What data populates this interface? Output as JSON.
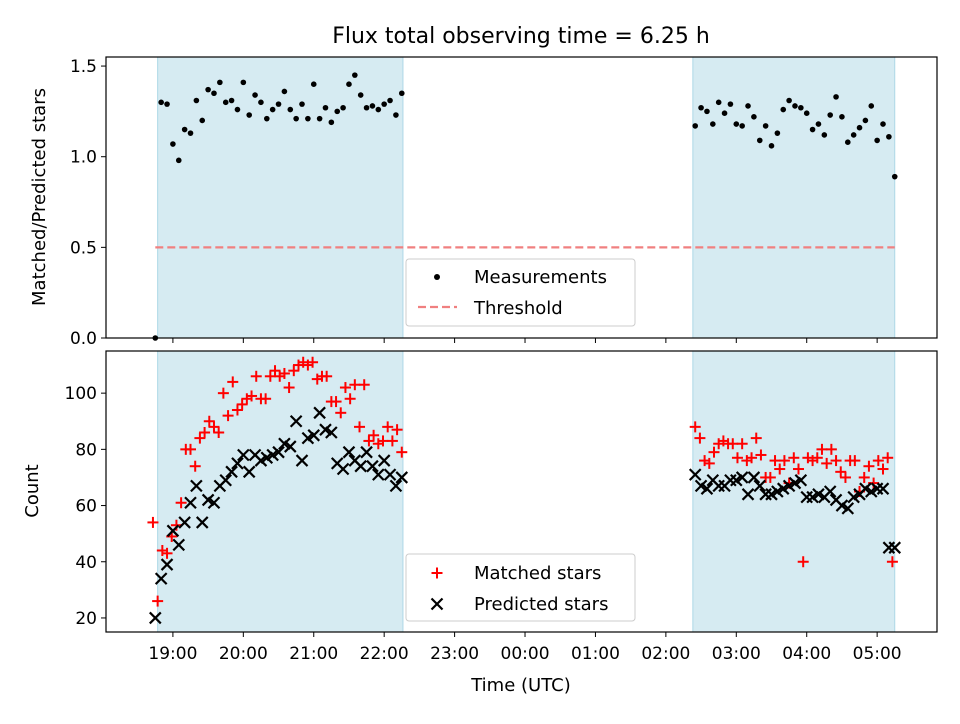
{
  "title": "Flux total observing time = 6.25 h",
  "xlabel": "Time (UTC)",
  "x_ticks": [
    "19:00",
    "20:00",
    "21:00",
    "22:00",
    "23:00",
    "00:00",
    "01:00",
    "02:00",
    "03:00",
    "04:00",
    "05:00"
  ],
  "colors": {
    "observing_window": "#add8e6",
    "threshold": "#f08080",
    "measurement": "#000000",
    "matched": "#ff0000",
    "predicted": "#000000"
  },
  "chart_data": [
    {
      "type": "scatter",
      "panel": "top",
      "ylabel": "Matched/Predicted stars",
      "ylim": [
        0,
        1.55
      ],
      "y_ticks": [
        "0.0",
        "0.5",
        "1.0",
        "1.5"
      ],
      "xlim_hours": [
        18.05,
        29.85
      ],
      "shaded_windows": [
        {
          "start": "18:47",
          "end": "22:16"
        },
        {
          "start": "02:23",
          "end": "05:15"
        }
      ],
      "threshold": 0.5,
      "legend": {
        "position": "lower center",
        "entries": [
          "Measurements",
          "Threshold"
        ]
      },
      "series": [
        {
          "name": "Measurements",
          "marker": "dot",
          "x": [
            "18:45",
            "18:50",
            "18:55",
            "19:00",
            "19:05",
            "19:10",
            "19:15",
            "19:20",
            "19:25",
            "19:30",
            "19:35",
            "19:40",
            "19:45",
            "19:50",
            "19:55",
            "20:00",
            "20:05",
            "20:10",
            "20:15",
            "20:20",
            "20:25",
            "20:30",
            "20:35",
            "20:40",
            "20:45",
            "20:50",
            "20:55",
            "21:00",
            "21:05",
            "21:10",
            "21:15",
            "21:20",
            "21:25",
            "21:30",
            "21:35",
            "21:40",
            "21:45",
            "21:50",
            "21:55",
            "22:00",
            "22:05",
            "22:10",
            "22:15",
            "02:25",
            "02:30",
            "02:35",
            "02:40",
            "02:45",
            "02:50",
            "02:55",
            "03:00",
            "03:05",
            "03:10",
            "03:15",
            "03:20",
            "03:25",
            "03:30",
            "03:35",
            "03:40",
            "03:45",
            "03:50",
            "03:55",
            "04:00",
            "04:05",
            "04:10",
            "04:15",
            "04:20",
            "04:25",
            "04:30",
            "04:35",
            "04:40",
            "04:45",
            "04:50",
            "04:55",
            "05:00",
            "05:05",
            "05:10",
            "05:15"
          ],
          "y": [
            0.0,
            1.3,
            1.29,
            1.07,
            0.98,
            1.15,
            1.13,
            1.31,
            1.2,
            1.37,
            1.35,
            1.41,
            1.3,
            1.31,
            1.26,
            1.41,
            1.23,
            1.34,
            1.3,
            1.21,
            1.26,
            1.29,
            1.36,
            1.26,
            1.21,
            1.29,
            1.21,
            1.4,
            1.21,
            1.27,
            1.19,
            1.25,
            1.27,
            1.4,
            1.45,
            1.34,
            1.27,
            1.28,
            1.26,
            1.29,
            1.31,
            1.23,
            1.35,
            1.17,
            1.27,
            1.25,
            1.18,
            1.3,
            1.24,
            1.29,
            1.18,
            1.17,
            1.28,
            1.22,
            1.09,
            1.17,
            1.06,
            1.13,
            1.26,
            1.31,
            1.28,
            1.27,
            1.24,
            1.15,
            1.18,
            1.12,
            1.23,
            1.33,
            1.22,
            1.08,
            1.12,
            1.16,
            1.2,
            1.28,
            1.09,
            1.18,
            1.11,
            0.89
          ]
        }
      ]
    },
    {
      "type": "scatter",
      "panel": "bottom",
      "ylabel": "Count",
      "ylim": [
        15,
        115
      ],
      "y_ticks": [
        "20",
        "40",
        "60",
        "80",
        "100"
      ],
      "xlim_hours": [
        18.05,
        29.85
      ],
      "shaded_windows": [
        {
          "start": "18:47",
          "end": "22:16"
        },
        {
          "start": "02:23",
          "end": "05:15"
        }
      ],
      "legend": {
        "position": "lower center",
        "entries": [
          "Matched stars",
          "Predicted stars"
        ]
      },
      "series": [
        {
          "name": "Matched stars",
          "marker": "plus",
          "x": [
            "18:43",
            "18:47",
            "18:51",
            "18:55",
            "18:59",
            "19:03",
            "19:07",
            "19:11",
            "19:15",
            "19:19",
            "19:23",
            "19:27",
            "19:31",
            "19:35",
            "19:39",
            "19:43",
            "19:47",
            "19:51",
            "19:55",
            "19:59",
            "20:03",
            "20:07",
            "20:11",
            "20:15",
            "20:19",
            "20:23",
            "20:27",
            "20:31",
            "20:35",
            "20:39",
            "20:43",
            "20:47",
            "20:51",
            "20:55",
            "20:59",
            "21:03",
            "21:07",
            "21:11",
            "21:15",
            "21:19",
            "21:23",
            "21:27",
            "21:31",
            "21:35",
            "21:39",
            "21:43",
            "21:47",
            "21:51",
            "21:55",
            "21:59",
            "22:03",
            "22:07",
            "22:11",
            "22:15",
            "02:25",
            "02:29",
            "02:33",
            "02:37",
            "02:41",
            "02:45",
            "02:49",
            "02:53",
            "02:57",
            "03:01",
            "03:05",
            "03:09",
            "03:13",
            "03:17",
            "03:21",
            "03:25",
            "03:29",
            "03:33",
            "03:37",
            "03:41",
            "03:45",
            "03:49",
            "03:53",
            "03:57",
            "04:01",
            "04:05",
            "04:09",
            "04:13",
            "04:17",
            "04:21",
            "04:25",
            "04:29",
            "04:33",
            "04:37",
            "04:41",
            "04:45",
            "04:49",
            "04:53",
            "04:57",
            "05:01",
            "05:05",
            "05:09",
            "05:13"
          ],
          "y": [
            54,
            26,
            44,
            43,
            49,
            53,
            61,
            80,
            80,
            74,
            84,
            86,
            90,
            88,
            86,
            100,
            92,
            104,
            94,
            96,
            98,
            99,
            106,
            98,
            98,
            106,
            108,
            106,
            107,
            102,
            108,
            110,
            111,
            110,
            111,
            105,
            106,
            106,
            97,
            97,
            93,
            102,
            98,
            103,
            88,
            103,
            83,
            85,
            82,
            83,
            88,
            83,
            87,
            79,
            88,
            84,
            76,
            75,
            79,
            82,
            83,
            82,
            82,
            77,
            82,
            76,
            77,
            84,
            78,
            70,
            70,
            76,
            73,
            76,
            68,
            77,
            73,
            40,
            77,
            76,
            77,
            80,
            75,
            80,
            76,
            72,
            70,
            76,
            76,
            65,
            70,
            74,
            68,
            76,
            73,
            77,
            40
          ]
        },
        {
          "name": "Predicted stars",
          "marker": "x",
          "x": [
            "18:45",
            "18:50",
            "18:55",
            "19:00",
            "19:05",
            "19:10",
            "19:15",
            "19:20",
            "19:25",
            "19:30",
            "19:35",
            "19:40",
            "19:45",
            "19:50",
            "19:55",
            "20:00",
            "20:05",
            "20:10",
            "20:15",
            "20:20",
            "20:25",
            "20:30",
            "20:35",
            "20:40",
            "20:45",
            "20:50",
            "20:55",
            "21:00",
            "21:05",
            "21:10",
            "21:15",
            "21:20",
            "21:25",
            "21:30",
            "21:35",
            "21:40",
            "21:45",
            "21:50",
            "21:55",
            "22:00",
            "22:05",
            "22:10",
            "22:15",
            "02:25",
            "02:30",
            "02:35",
            "02:40",
            "02:45",
            "02:50",
            "02:55",
            "03:00",
            "03:05",
            "03:10",
            "03:15",
            "03:20",
            "03:25",
            "03:30",
            "03:35",
            "03:40",
            "03:45",
            "03:50",
            "03:55",
            "04:00",
            "04:05",
            "04:10",
            "04:15",
            "04:20",
            "04:25",
            "04:30",
            "04:35",
            "04:40",
            "04:45",
            "04:50",
            "04:55",
            "05:00",
            "05:05",
            "05:10",
            "05:15"
          ],
          "y": [
            20,
            34,
            39,
            51,
            46,
            54,
            61,
            67,
            54,
            62,
            61,
            67,
            69,
            72,
            75,
            78,
            72,
            78,
            76,
            77,
            78,
            79,
            82,
            81,
            90,
            76,
            84,
            85,
            93,
            87,
            86,
            75,
            73,
            79,
            76,
            74,
            79,
            74,
            71,
            76,
            71,
            67,
            70,
            71,
            67,
            66,
            69,
            67,
            67,
            69,
            69,
            70,
            64,
            70,
            67,
            64,
            64,
            65,
            66,
            67,
            68,
            69,
            63,
            63,
            64,
            63,
            65,
            62,
            60,
            59,
            63,
            64,
            66,
            65,
            66,
            66,
            45,
            45
          ]
        }
      ]
    }
  ]
}
